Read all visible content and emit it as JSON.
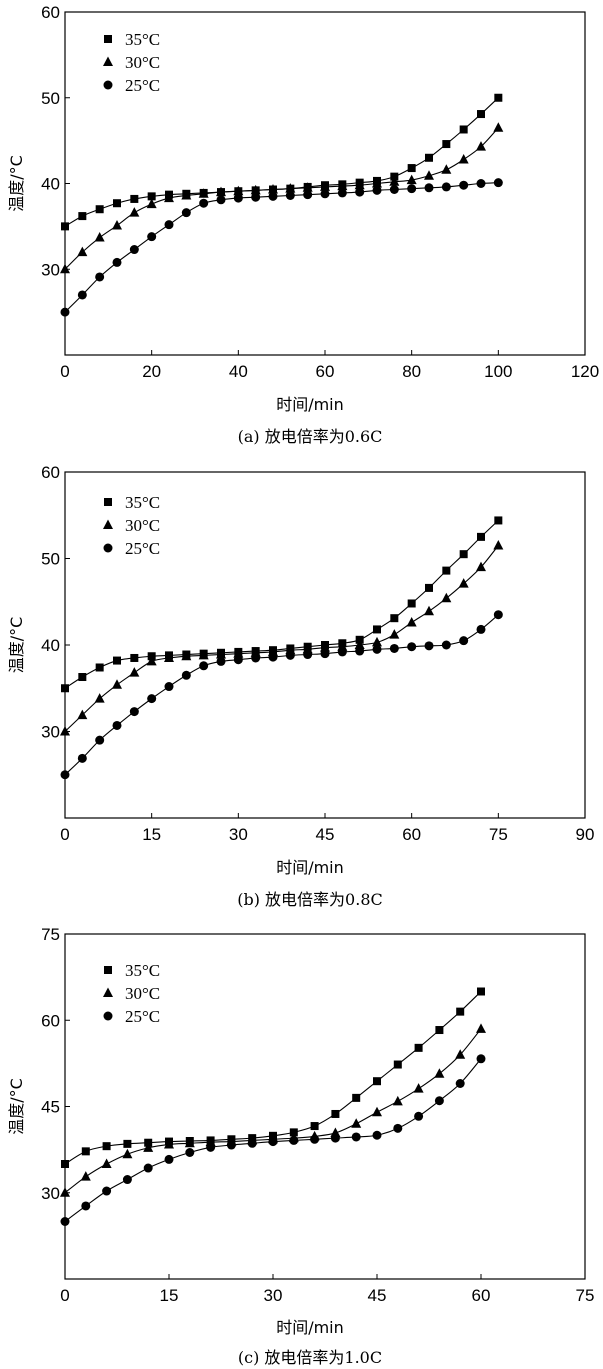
{
  "chart_data": [
    {
      "type": "line",
      "caption": "(a) 放电倍率为0.6C",
      "xlabel": "时间/min",
      "ylabel": "温度/°C",
      "xlim": [
        0,
        120
      ],
      "ylim": [
        20,
        60
      ],
      "xticks": [
        0,
        20,
        40,
        60,
        80,
        100,
        120
      ],
      "yticks": [
        30,
        40,
        50,
        60
      ],
      "xtick_labels": [
        "0",
        "20",
        "40",
        "60",
        "80",
        "100",
        "120"
      ],
      "ytick_labels": [
        "30",
        "40",
        "50",
        "60"
      ],
      "legend_position": "top-left",
      "grid": false,
      "series": [
        {
          "name": "35°C",
          "marker": "square",
          "x": [
            0,
            4,
            8,
            12,
            16,
            20,
            24,
            28,
            32,
            36,
            40,
            44,
            48,
            52,
            56,
            60,
            64,
            68,
            72,
            76,
            80,
            84,
            88,
            92,
            96,
            100
          ],
          "y": [
            35.0,
            36.2,
            37.0,
            37.7,
            38.2,
            38.5,
            38.7,
            38.8,
            38.9,
            39.0,
            39.1,
            39.2,
            39.3,
            39.4,
            39.6,
            39.8,
            39.9,
            40.1,
            40.3,
            40.8,
            41.8,
            43.0,
            44.6,
            46.3,
            48.1,
            50.0
          ]
        },
        {
          "name": "30°C",
          "marker": "triangle",
          "x": [
            0,
            4,
            8,
            12,
            16,
            20,
            24,
            28,
            32,
            36,
            40,
            44,
            48,
            52,
            56,
            60,
            64,
            68,
            72,
            76,
            80,
            84,
            88,
            92,
            96,
            100
          ],
          "y": [
            30.0,
            32.0,
            33.7,
            35.1,
            36.6,
            37.6,
            38.3,
            38.6,
            38.8,
            39.0,
            39.1,
            39.2,
            39.3,
            39.4,
            39.5,
            39.6,
            39.7,
            39.8,
            40.0,
            40.2,
            40.4,
            40.9,
            41.6,
            42.8,
            44.3,
            46.5
          ]
        },
        {
          "name": "25°C",
          "marker": "circle",
          "x": [
            0,
            4,
            8,
            12,
            16,
            20,
            24,
            28,
            32,
            36,
            40,
            44,
            48,
            52,
            56,
            60,
            64,
            68,
            72,
            76,
            80,
            84,
            88,
            92,
            96,
            100
          ],
          "y": [
            25.0,
            27.0,
            29.1,
            30.8,
            32.3,
            33.8,
            35.2,
            36.6,
            37.7,
            38.1,
            38.3,
            38.4,
            38.5,
            38.6,
            38.7,
            38.8,
            38.9,
            39.0,
            39.2,
            39.3,
            39.4,
            39.5,
            39.6,
            39.8,
            40.0,
            40.1
          ]
        }
      ]
    },
    {
      "type": "line",
      "caption": "(b) 放电倍率为0.8C",
      "xlabel": "时间/min",
      "ylabel": "温度/°C",
      "xlim": [
        0,
        90
      ],
      "ylim": [
        20,
        60
      ],
      "xticks": [
        0,
        15,
        30,
        45,
        60,
        75,
        90
      ],
      "yticks": [
        30,
        40,
        50,
        60
      ],
      "xtick_labels": [
        "0",
        "15",
        "30",
        "45",
        "60",
        "75",
        "90"
      ],
      "ytick_labels": [
        "30",
        "40",
        "50",
        "60"
      ],
      "legend_position": "top-left",
      "grid": false,
      "series": [
        {
          "name": "35°C",
          "marker": "square",
          "x": [
            0,
            3,
            6,
            9,
            12,
            15,
            18,
            21,
            24,
            27,
            30,
            33,
            36,
            39,
            42,
            45,
            48,
            51,
            54,
            57,
            60,
            63,
            66,
            69,
            72,
            75
          ],
          "y": [
            35.0,
            36.3,
            37.4,
            38.2,
            38.5,
            38.7,
            38.8,
            38.9,
            39.0,
            39.1,
            39.2,
            39.3,
            39.4,
            39.6,
            39.8,
            40.0,
            40.2,
            40.6,
            41.8,
            43.1,
            44.8,
            46.6,
            48.6,
            50.5,
            52.5,
            54.4
          ]
        },
        {
          "name": "30°C",
          "marker": "triangle",
          "x": [
            0,
            3,
            6,
            9,
            12,
            15,
            18,
            21,
            24,
            27,
            30,
            33,
            36,
            39,
            42,
            45,
            48,
            51,
            54,
            57,
            60,
            63,
            66,
            69,
            72,
            75
          ],
          "y": [
            30.0,
            31.9,
            33.8,
            35.4,
            36.8,
            38.1,
            38.5,
            38.7,
            38.8,
            38.9,
            39.0,
            39.1,
            39.2,
            39.4,
            39.5,
            39.7,
            39.8,
            40.0,
            40.3,
            41.2,
            42.6,
            43.9,
            45.4,
            47.1,
            49.0,
            51.5
          ]
        },
        {
          "name": "25°C",
          "marker": "circle",
          "x": [
            0,
            3,
            6,
            9,
            12,
            15,
            18,
            21,
            24,
            27,
            30,
            33,
            36,
            39,
            42,
            45,
            48,
            51,
            54,
            57,
            60,
            63,
            66,
            69,
            72,
            75
          ],
          "y": [
            25.0,
            26.9,
            29.0,
            30.7,
            32.3,
            33.8,
            35.2,
            36.5,
            37.6,
            38.1,
            38.3,
            38.5,
            38.6,
            38.8,
            38.9,
            39.0,
            39.2,
            39.3,
            39.5,
            39.6,
            39.8,
            39.9,
            40.0,
            40.5,
            41.8,
            43.5
          ]
        }
      ]
    },
    {
      "type": "line",
      "caption": "(c) 放电倍率为1.0C",
      "xlabel": "时间/min",
      "ylabel": "温度/°C",
      "xlim": [
        0,
        75
      ],
      "ylim": [
        15,
        75
      ],
      "xticks": [
        0,
        15,
        30,
        45,
        60,
        75
      ],
      "yticks": [
        30,
        45,
        60,
        75
      ],
      "xtick_labels": [
        "0",
        "15",
        "30",
        "45",
        "60",
        "75"
      ],
      "ytick_labels": [
        "30",
        "45",
        "60",
        "75"
      ],
      "legend_position": "top-left",
      "grid": false,
      "series": [
        {
          "name": "35°C",
          "marker": "square",
          "x": [
            0,
            3,
            6,
            9,
            12,
            15,
            18,
            21,
            24,
            27,
            30,
            33,
            36,
            39,
            42,
            45,
            48,
            51,
            54,
            57,
            60
          ],
          "y": [
            35.0,
            37.2,
            38.1,
            38.5,
            38.7,
            38.9,
            39.0,
            39.1,
            39.3,
            39.5,
            39.9,
            40.5,
            41.6,
            43.7,
            46.5,
            49.4,
            52.3,
            55.2,
            58.3,
            61.5,
            65.0
          ]
        },
        {
          "name": "30°C",
          "marker": "triangle",
          "x": [
            0,
            3,
            6,
            9,
            12,
            15,
            18,
            21,
            24,
            27,
            30,
            33,
            36,
            39,
            42,
            45,
            48,
            51,
            54,
            57,
            60
          ],
          "y": [
            30.0,
            32.8,
            35.0,
            36.7,
            37.8,
            38.4,
            38.6,
            38.8,
            38.9,
            39.1,
            39.3,
            39.5,
            39.8,
            40.4,
            42.0,
            44.0,
            45.9,
            48.1,
            50.7,
            54.0,
            58.5
          ]
        },
        {
          "name": "25°C",
          "marker": "circle",
          "x": [
            0,
            3,
            6,
            9,
            12,
            15,
            18,
            21,
            24,
            27,
            30,
            33,
            36,
            39,
            42,
            45,
            48,
            51,
            54,
            57,
            60
          ],
          "y": [
            25.0,
            27.7,
            30.3,
            32.3,
            34.3,
            35.8,
            37.0,
            37.9,
            38.3,
            38.6,
            38.9,
            39.1,
            39.3,
            39.5,
            39.7,
            40.0,
            41.2,
            43.3,
            46.0,
            49.0,
            53.3
          ]
        }
      ]
    }
  ]
}
